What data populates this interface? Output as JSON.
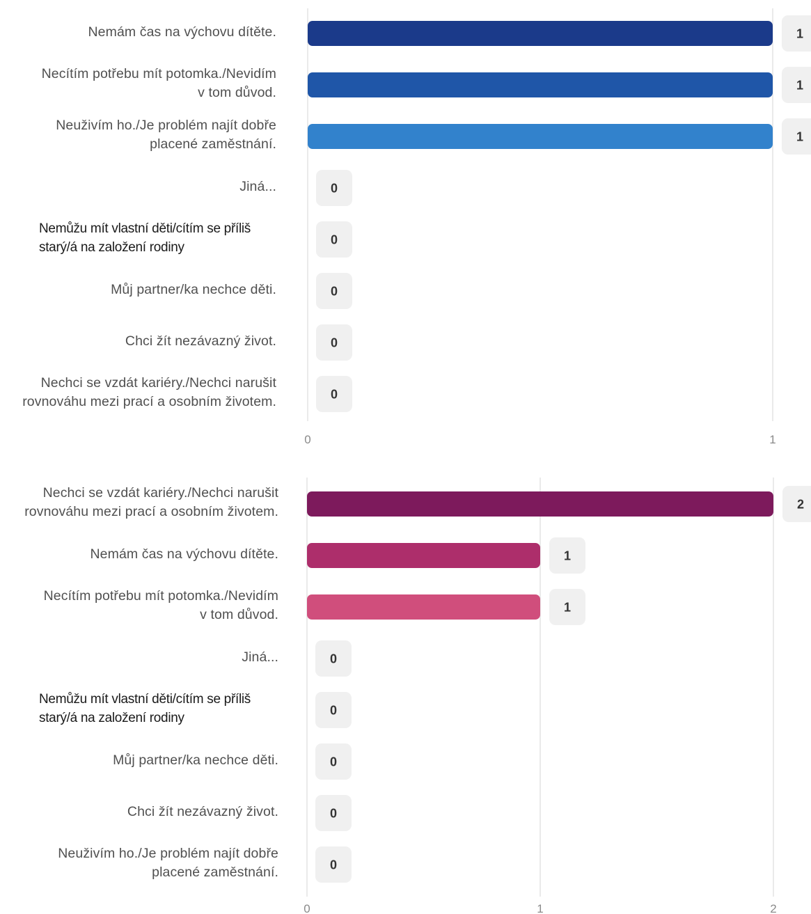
{
  "charts": [
    {
      "type": "bar",
      "orientation": "horizontal",
      "categories": [
        "Nemám čas na výchovu dítěte.",
        "Necítím potřebu mít potomka./Nevidím\nv tom důvod.",
        "Neuživím ho./Je problém najít dobře\nplacené zaměstnání.",
        "Jiná...",
        "Nemůžu mít vlastní děti/cítím se příliš\nstarý/á na založení rodiny",
        "Můj partner/ka nechce děti.",
        "Chci žít nezávazný život.",
        "Nechci se vzdát kariéry./Nechci narušit\nrovnováhu mezi prací a osobním životem."
      ],
      "values": [
        1,
        1,
        1,
        0,
        0,
        0,
        0,
        0
      ],
      "value_labels": [
        "1",
        "1",
        "1",
        "0",
        "0",
        "0",
        "0",
        "0"
      ],
      "colors": [
        "#1b3a8a",
        "#1f56a8",
        "#3282cc",
        "#3282cc",
        "#3282cc",
        "#3282cc",
        "#3282cc",
        "#3282cc"
      ],
      "xlim": [
        0,
        1
      ],
      "x_ticks": [
        "0",
        "1"
      ],
      "grid": true,
      "title": "",
      "xlabel": "",
      "ylabel": ""
    },
    {
      "type": "bar",
      "orientation": "horizontal",
      "categories": [
        "Nechci se vzdát kariéry./Nechci narušit\nrovnováhu mezi prací a osobním životem.",
        "Nemám čas na výchovu dítěte.",
        "Necítím potřebu mít potomka./Nevidím\nv tom důvod.",
        "Jiná...",
        "Nemůžu mít vlastní děti/cítím se příliš\nstarý/á na založení rodiny",
        "Můj partner/ka nechce děti.",
        "Chci žít nezávazný život.",
        "Neuživím ho./Je problém najít dobře\nplacené zaměstnání."
      ],
      "values": [
        2,
        1,
        1,
        0,
        0,
        0,
        0,
        0
      ],
      "value_labels": [
        "2",
        "1",
        "1",
        "0",
        "0",
        "0",
        "0",
        "0"
      ],
      "colors": [
        "#7d1a5c",
        "#ad2e6b",
        "#d04e7c",
        "#d04e7c",
        "#d04e7c",
        "#d04e7c",
        "#d04e7c",
        "#d04e7c"
      ],
      "xlim": [
        0,
        2
      ],
      "x_ticks": [
        "0",
        "1",
        "2"
      ],
      "grid": true,
      "title": "",
      "xlabel": "",
      "ylabel": ""
    }
  ],
  "style": {
    "gridline_color": "#e3e3e3",
    "badge_fill": "#f0f0f0",
    "badge_text_color": "#333333",
    "tick_color": "#8a8a8a",
    "dark_label_categories": [
      "Nemůžu mít vlastní děti/cítím se příliš\nstarý/á na založení rodiny"
    ]
  }
}
